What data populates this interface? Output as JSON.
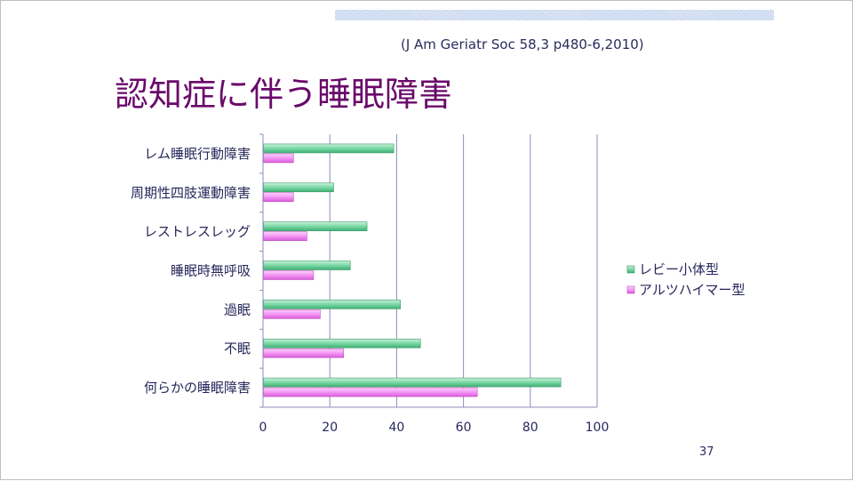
{
  "slide": {
    "citation": "(J Am Geriatr Soc 58,3 p480-6,2010)",
    "title": "認知症に伴う睡眠障害",
    "page_number": "37"
  },
  "colors": {
    "series_1": "#5dca91",
    "series_2": "#f07af0",
    "title": "#6a0a6a",
    "gridline": "#8c8cc0",
    "text": "#26265a"
  },
  "chart_data": {
    "type": "bar",
    "orientation": "horizontal",
    "categories": [
      "レム睡眠行動障害",
      "周期性四肢運動障害",
      "レストレスレッグ",
      "睡眠時無呼吸",
      "過眠",
      "不眠",
      "何らかの睡眠障害"
    ],
    "series": [
      {
        "name": "レビー小体型",
        "values": [
          39,
          21,
          31,
          26,
          41,
          47,
          89
        ]
      },
      {
        "name": "アルツハイマー型",
        "values": [
          9,
          9,
          13,
          15,
          17,
          24,
          64
        ]
      }
    ],
    "xlim": [
      0,
      100
    ],
    "xticks": [
      0,
      20,
      40,
      60,
      80,
      100
    ],
    "grid": true,
    "legend_position": "right"
  }
}
